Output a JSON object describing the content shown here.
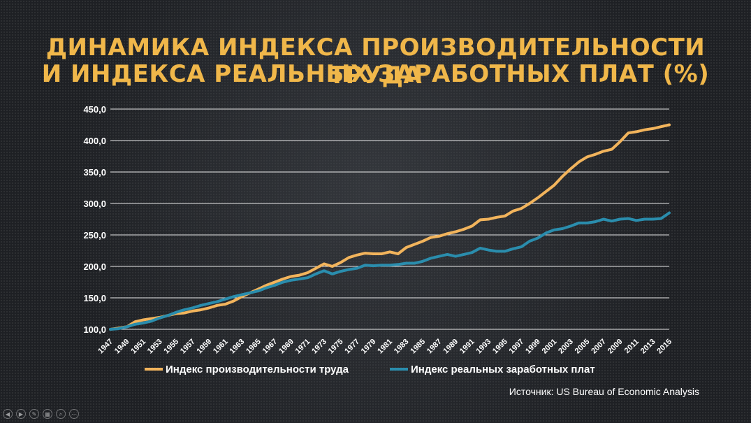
{
  "title_line1": "Динамика индекса производительности труда",
  "title_line2": "и индекса реальных заработных плат (%)",
  "source": "Источник: US Bureau of Economic Analysis",
  "colors": {
    "productivity": "#f2b45c",
    "wages": "#2a8dad",
    "title": "#f0b74a",
    "grid": "#ffffff"
  },
  "controls": [
    {
      "name": "prev-slide-icon",
      "glyph": "◀"
    },
    {
      "name": "next-slide-icon",
      "glyph": "▶"
    },
    {
      "name": "pen-icon",
      "glyph": "✎"
    },
    {
      "name": "slides-icon",
      "glyph": "▦"
    },
    {
      "name": "zoom-icon",
      "glyph": "⌕"
    },
    {
      "name": "more-icon",
      "glyph": "⋯"
    }
  ],
  "chart_data": {
    "type": "line",
    "title": "",
    "xlabel": "",
    "ylabel": "",
    "ylim": [
      100,
      450
    ],
    "y_ticks": [
      "100,0",
      "150,0",
      "200,0",
      "250,0",
      "300,0",
      "350,0",
      "400,0",
      "450,0"
    ],
    "y_tick_values": [
      100,
      150,
      200,
      250,
      300,
      350,
      400,
      450
    ],
    "grid": true,
    "legend_position": "bottom",
    "x_tick_labels": [
      "1947",
      "1949",
      "1951",
      "1953",
      "1955",
      "1957",
      "1959",
      "1961",
      "1963",
      "1965",
      "1967",
      "1969",
      "1971",
      "1973",
      "1975",
      "1977",
      "1979",
      "1981",
      "1983",
      "1985",
      "1987",
      "1989",
      "1991",
      "1993",
      "1995",
      "1997",
      "1999",
      "2001",
      "2003",
      "2005",
      "2007",
      "2009",
      "2011",
      "2013",
      "2015"
    ],
    "x": [
      1947,
      1948,
      1949,
      1950,
      1951,
      1952,
      1953,
      1954,
      1955,
      1956,
      1957,
      1958,
      1959,
      1960,
      1961,
      1962,
      1963,
      1964,
      1965,
      1966,
      1967,
      1968,
      1969,
      1970,
      1971,
      1972,
      1973,
      1974,
      1975,
      1976,
      1977,
      1978,
      1979,
      1980,
      1981,
      1982,
      1983,
      1984,
      1985,
      1986,
      1987,
      1988,
      1989,
      1990,
      1991,
      1992,
      1993,
      1994,
      1995,
      1996,
      1997,
      1998,
      1999,
      2000,
      2001,
      2002,
      2003,
      2004,
      2005,
      2006,
      2007,
      2008,
      2009,
      2010,
      2011,
      2012,
      2013,
      2014,
      2015
    ],
    "series": [
      {
        "name": "Индекс производительности труда",
        "values": [
          100,
          102,
          104,
          112,
          115,
          117,
          119,
          122,
          125,
          126,
          129,
          131,
          134,
          138,
          140,
          145,
          152,
          158,
          164,
          170,
          175,
          180,
          184,
          186,
          190,
          197,
          204,
          200,
          206,
          214,
          218,
          221,
          220,
          220,
          223,
          220,
          230,
          235,
          240,
          246,
          248,
          252,
          255,
          259,
          264,
          274,
          275,
          278,
          280,
          288,
          292,
          300,
          309,
          319,
          329,
          343,
          355,
          366,
          374,
          378,
          383,
          386,
          398,
          412,
          414,
          417,
          419,
          422,
          425
        ]
      },
      {
        "name": "Индекс реальных заработных плат",
        "values": [
          100,
          101,
          104,
          108,
          110,
          113,
          118,
          122,
          127,
          131,
          134,
          138,
          141,
          144,
          148,
          152,
          155,
          158,
          161,
          166,
          170,
          175,
          178,
          180,
          182,
          188,
          193,
          188,
          192,
          195,
          197,
          202,
          201,
          202,
          202,
          203,
          205,
          205,
          208,
          213,
          216,
          219,
          216,
          219,
          222,
          229,
          226,
          224,
          224,
          228,
          231,
          240,
          245,
          253,
          258,
          260,
          264,
          269,
          269,
          271,
          275,
          272,
          275,
          276,
          273,
          275,
          275,
          276,
          285
        ]
      }
    ]
  }
}
